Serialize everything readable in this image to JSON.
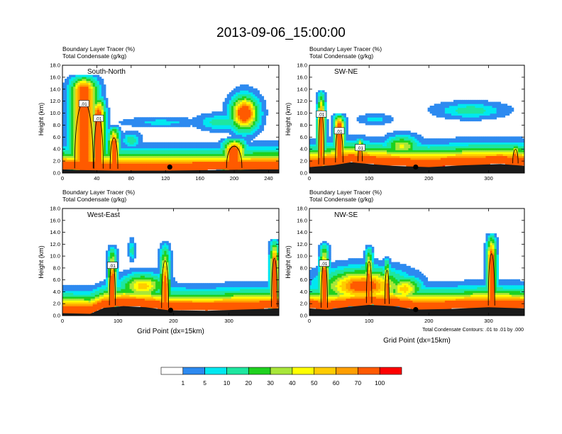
{
  "figure": {
    "title": "2013-09-06_15:00:00",
    "footnote": "Total Condensate Contours: .01 to .01 by .000",
    "colors": {
      "ground": "#1a1a1a",
      "axis": "#000000",
      "contour": "#000000",
      "marker": "#000000"
    }
  },
  "colorbar": {
    "colors": [
      "#ffffff",
      "#2d8af0",
      "#00e8f0",
      "#1ee6a0",
      "#1fd11f",
      "#a8e63a",
      "#ffff00",
      "#ffcc00",
      "#ff9f00",
      "#ff5a00",
      "#ff0000"
    ],
    "labels": [
      "1",
      "5",
      "10",
      "20",
      "30",
      "40",
      "50",
      "60",
      "70",
      "100"
    ]
  },
  "chart_data": [
    {
      "type": "heatmap",
      "name": "South-North",
      "title_lines": [
        "Boundary Layer Tracer   (%)",
        "Total Condensate   (g/kg)"
      ],
      "ylabel": "Height (km)",
      "xlabel": "",
      "xlim": [
        0,
        252
      ],
      "ylim": [
        0,
        18
      ],
      "xticks": [
        "0",
        "40",
        "80",
        "120",
        "160",
        "200",
        "240"
      ],
      "yticks": [
        "0.0",
        "2.0",
        "4.0",
        "6.0",
        "8.0",
        "10.0",
        "12.0",
        "14.0",
        "16.0",
        "18.0"
      ],
      "contour_labels": [
        ".01",
        ".01"
      ],
      "marker": {
        "x": 125,
        "y": 1.0
      },
      "terrain": [
        [
          0,
          0.6
        ],
        [
          20,
          0.5
        ],
        [
          60,
          0.4
        ],
        [
          120,
          0.4
        ],
        [
          180,
          0.5
        ],
        [
          230,
          0.6
        ],
        [
          252,
          0.6
        ]
      ],
      "plumes": [
        {
          "x": 25,
          "w": 12,
          "top": 16.5,
          "core": 14
        },
        {
          "x": 42,
          "w": 6,
          "top": 13,
          "core": 10
        },
        {
          "x": 60,
          "w": 5,
          "top": 8,
          "core": 5
        },
        {
          "x": 200,
          "w": 10,
          "top": 6,
          "core": 4
        }
      ],
      "blobs": [
        {
          "x": 212,
          "y": 10,
          "rx": 14,
          "ry": 2.5,
          "v": 70
        },
        {
          "x": 115,
          "y": 8.5,
          "rx": 40,
          "ry": 0.7,
          "v": 5
        },
        {
          "x": 185,
          "y": 8.5,
          "rx": 25,
          "ry": 1.2,
          "v": 10
        },
        {
          "x": 80,
          "y": 5.5,
          "rx": 10,
          "ry": 1.2,
          "v": 10
        }
      ]
    },
    {
      "type": "heatmap",
      "name": "SW-NE",
      "title_lines": [
        "Boundary Layer Tracer   (%)",
        "Total Condensate   (g/kg)"
      ],
      "ylabel": "Height (km)",
      "xlabel": "",
      "xlim": [
        0,
        360
      ],
      "ylim": [
        0,
        18
      ],
      "xticks": [
        "0",
        "100",
        "200",
        "300"
      ],
      "yticks": [
        "0.0",
        "2.0",
        "4.0",
        "6.0",
        "8.0",
        "10.0",
        "12.0",
        "14.0",
        "16.0",
        "18.0"
      ],
      "contour_labels": [
        ".01",
        ".01",
        ".01"
      ],
      "marker": {
        "x": 178,
        "y": 1.0
      },
      "terrain": [
        [
          0,
          1.0
        ],
        [
          40,
          1.3
        ],
        [
          70,
          1.8
        ],
        [
          100,
          1.5
        ],
        [
          140,
          1.2
        ],
        [
          200,
          1.0
        ],
        [
          260,
          1.3
        ],
        [
          320,
          1.5
        ],
        [
          360,
          1.2
        ]
      ],
      "plumes": [
        {
          "x": 20,
          "w": 5,
          "top": 14,
          "core": 9
        },
        {
          "x": 50,
          "w": 7,
          "top": 10,
          "core": 8
        },
        {
          "x": 85,
          "w": 4,
          "top": 6,
          "core": 4
        },
        {
          "x": 345,
          "w": 5,
          "top": 5,
          "core": 3
        }
      ],
      "blobs": [
        {
          "x": 110,
          "y": 9.0,
          "rx": 25,
          "ry": 0.8,
          "v": 5
        },
        {
          "x": 270,
          "y": 10.5,
          "rx": 50,
          "ry": 1.2,
          "v": 10
        },
        {
          "x": 155,
          "y": 4.5,
          "rx": 25,
          "ry": 1.5,
          "v": 30
        }
      ]
    },
    {
      "type": "heatmap",
      "name": "West-East",
      "title_lines": [
        "Boundary Layer Tracer   (%)",
        "Total Condensate   (g/kg)"
      ],
      "ylabel": "Height (km)",
      "xlabel": "Grid Point (dx=15km)",
      "xlim": [
        0,
        390
      ],
      "ylim": [
        0,
        18
      ],
      "xticks": [
        "0",
        "100",
        "200",
        "300"
      ],
      "yticks": [
        "0.0",
        "2.0",
        "4.0",
        "6.0",
        "8.0",
        "10.0",
        "12.0",
        "14.0",
        "16.0",
        "18.0"
      ],
      "contour_labels": [
        ".01"
      ],
      "marker": {
        "x": 195,
        "y": 0.9
      },
      "terrain": [
        [
          0,
          0.4
        ],
        [
          50,
          0.3
        ],
        [
          75,
          1.3
        ],
        [
          110,
          1.6
        ],
        [
          150,
          1.4
        ],
        [
          190,
          0.9
        ],
        [
          260,
          0.8
        ],
        [
          320,
          1.0
        ],
        [
          390,
          1.2
        ]
      ],
      "plumes": [
        {
          "x": 90,
          "w": 6,
          "top": 12,
          "core": 6
        },
        {
          "x": 185,
          "w": 7,
          "top": 12.5,
          "core": 5
        },
        {
          "x": 382,
          "w": 6,
          "top": 13,
          "core": 9
        }
      ],
      "blobs": [
        {
          "x": 125,
          "y": 11,
          "rx": 5,
          "ry": 1.5,
          "v": 10
        },
        {
          "x": 145,
          "y": 5.0,
          "rx": 35,
          "ry": 1.8,
          "v": 40
        },
        {
          "x": 350,
          "y": 3.0,
          "rx": 15,
          "ry": 0.8,
          "v": 20
        }
      ]
    },
    {
      "type": "heatmap",
      "name": "NW-SE",
      "title_lines": [
        "Boundary Layer Tracer   (%)",
        "Total Condensate   (g/kg)"
      ],
      "ylabel": "Height (km)",
      "xlabel": "Grid Point (dx=15km)",
      "xlim": [
        0,
        360
      ],
      "ylim": [
        0,
        18
      ],
      "xticks": [
        "0",
        "100",
        "200",
        "300"
      ],
      "yticks": [
        "0.0",
        "2.0",
        "4.0",
        "6.0",
        "8.0",
        "10.0",
        "12.0",
        "14.0",
        "16.0",
        "18.0"
      ],
      "contour_labels": [
        ".01"
      ],
      "marker": {
        "x": 178,
        "y": 1.0
      },
      "terrain": [
        [
          0,
          1.2
        ],
        [
          30,
          1.0
        ],
        [
          60,
          1.4
        ],
        [
          100,
          1.8
        ],
        [
          140,
          1.6
        ],
        [
          178,
          1.0
        ],
        [
          230,
          1.1
        ],
        [
          300,
          1.4
        ],
        [
          360,
          1.2
        ]
      ],
      "plumes": [
        {
          "x": 25,
          "w": 6,
          "top": 12.5,
          "core": 7
        },
        {
          "x": 100,
          "w": 5,
          "top": 12,
          "core": 6
        },
        {
          "x": 130,
          "w": 4,
          "top": 10,
          "core": 5
        },
        {
          "x": 305,
          "w": 6,
          "top": 14,
          "core": 10
        }
      ],
      "blobs": [
        {
          "x": 90,
          "y": 5.0,
          "rx": 60,
          "ry": 2.5,
          "v": 60
        },
        {
          "x": 160,
          "y": 4.5,
          "rx": 25,
          "ry": 1.8,
          "v": 40
        }
      ]
    }
  ]
}
